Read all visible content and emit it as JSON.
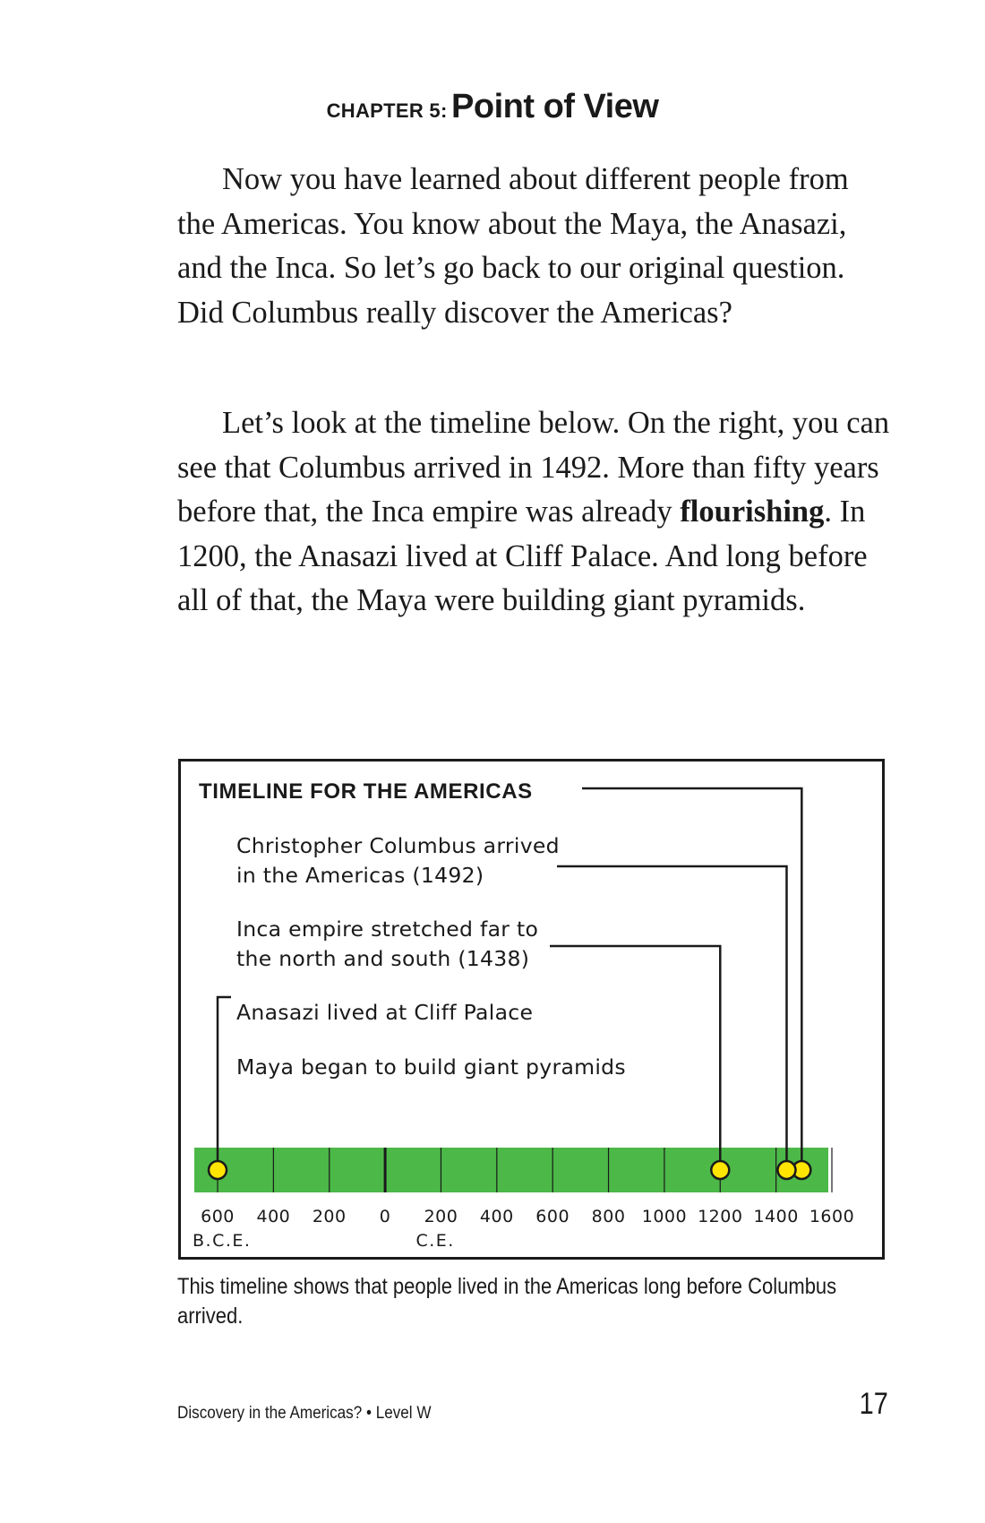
{
  "chapter": {
    "label": "CHAPTER 5:",
    "title": "Point of View"
  },
  "paragraphs": [
    {
      "text": "Now you have learned about different people from the Americas. You know about the Maya, the Anasazi, and the Inca. So let’s go back to our original question. Did Columbus really discover the Americas?"
    },
    {
      "before": "Let’s look at the timeline below. On the right, you can see that Columbus arrived in 1492.  More than fifty years before that, the Inca empire was already ",
      "bold": "flourishing",
      "after": ". In 1200, the Anasazi lived at Cliff Palace. And long before all of that, the Maya were building giant pyramids."
    }
  ],
  "chart_data": {
    "type": "timeline",
    "title": "TIMELINE FOR THE AMERICAS",
    "colors": {
      "bar": "#4cb848",
      "marker": "#ffe500",
      "line": "#1a1a1a"
    },
    "axis": {
      "min": -600,
      "max": 1600,
      "ticks": [
        -600,
        -400,
        -200,
        0,
        200,
        400,
        600,
        800,
        1000,
        1200,
        1400,
        1600
      ],
      "tick_labels": [
        "600",
        "400",
        "200",
        "0",
        "200",
        "400",
        "600",
        "800",
        "1000",
        "1200",
        "1400",
        "1600"
      ],
      "era_labels": [
        {
          "text": "B.C.E.",
          "at": -600
        },
        {
          "text": "C.E.",
          "at": 200
        }
      ]
    },
    "events": [
      {
        "year": 1492,
        "line1": "Christopher Columbus arrived",
        "line2": "in the Americas (1492)"
      },
      {
        "year": 1438,
        "line1": "Inca empire stretched far to",
        "line2": "the north and south (1438)"
      },
      {
        "year": 1200,
        "line1": "Anasazi lived at Cliff Palace",
        "line2": ""
      },
      {
        "year": -600,
        "line1": "Maya began to build giant pyramids",
        "line2": ""
      }
    ]
  },
  "caption": "This timeline shows that people lived in the Americas long before Columbus arrived.",
  "footer": {
    "title": "Discovery in the Americas? • Level W",
    "page_number": "17"
  }
}
